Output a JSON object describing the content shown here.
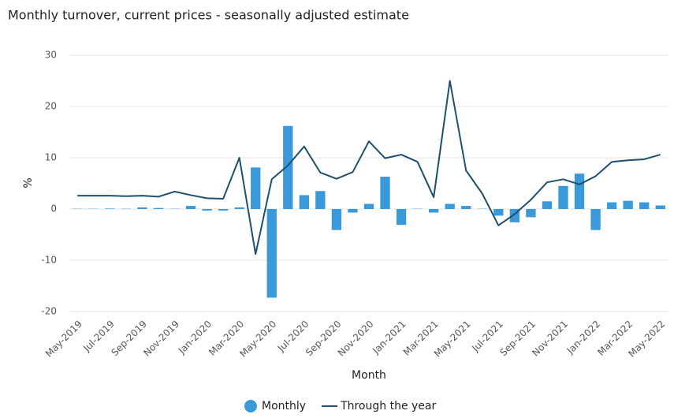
{
  "chart_data": {
    "type": "bar",
    "title": "Monthly turnover, current prices - seasonally adjusted estimate",
    "x_label": "Month",
    "y_label": "%",
    "categories": [
      "May-2019",
      null,
      "Jul-2019",
      null,
      "Sep-2019",
      null,
      "Nov-2019",
      null,
      "Jan-2020",
      null,
      "Mar-2020",
      null,
      "May-2020",
      null,
      "Jul-2020",
      null,
      "Sep-2020",
      null,
      "Nov-2020",
      null,
      "Jan-2021",
      null,
      "Mar-2021",
      null,
      "May-2021",
      null,
      "Jul-2021",
      null,
      "Sep-2021",
      null,
      "Nov-2021",
      null,
      "Jan-2022",
      null,
      "Mar-2022",
      null,
      "May-2022"
    ],
    "series": [
      {
        "name": "Monthly",
        "type": "bar",
        "color": "#3a9ad9",
        "values": [
          0.05,
          0.05,
          0.1,
          0.05,
          0.3,
          0.2,
          0.05,
          0.6,
          -0.3,
          -0.3,
          0.3,
          8.1,
          -17.3,
          16.2,
          2.7,
          3.5,
          -4.1,
          -0.7,
          1.0,
          6.3,
          -3.1,
          0.05,
          -0.7,
          1.0,
          0.6,
          0.05,
          -1.3,
          -2.6,
          -1.6,
          1.5,
          4.5,
          6.9,
          -4.1,
          1.3,
          1.6,
          1.3,
          0.7
        ]
      },
      {
        "name": "Through the year",
        "type": "line",
        "color": "#1d4f6e",
        "values": [
          2.6,
          2.6,
          2.6,
          2.5,
          2.6,
          2.4,
          3.4,
          2.7,
          2.1,
          2.0,
          10.0,
          -8.8,
          5.8,
          8.5,
          12.2,
          7.1,
          5.9,
          7.2,
          13.2,
          9.9,
          10.6,
          9.2,
          2.3,
          25.0,
          7.5,
          3.0,
          -3.2,
          -1.0,
          1.8,
          5.2,
          5.8,
          4.8,
          6.4,
          9.2,
          9.5,
          9.7,
          10.6
        ]
      }
    ],
    "ylim": [
      -20,
      30
    ],
    "yticks": [
      -20,
      -10,
      0,
      10,
      20,
      30
    ],
    "grid": true,
    "legend": "bottom"
  }
}
